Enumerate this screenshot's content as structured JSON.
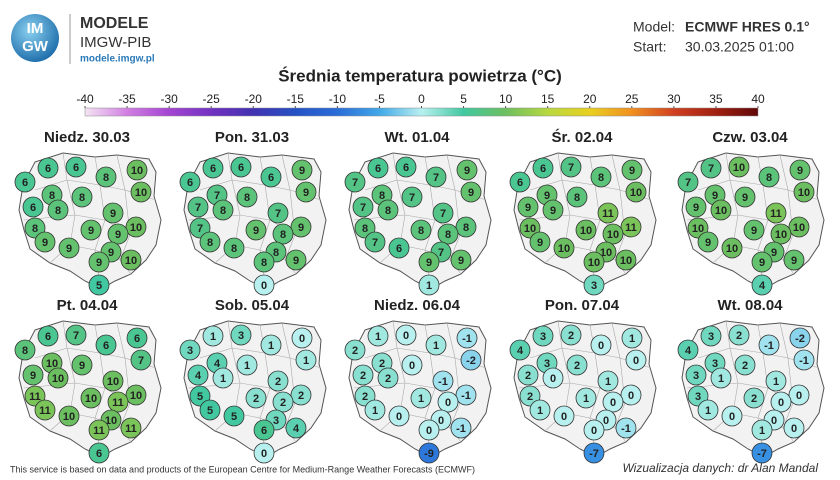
{
  "header": {
    "logo": [
      "IM",
      "GW"
    ],
    "brand": "MODELE",
    "org": "IMGW-PIB",
    "url": "modele.imgw.pl",
    "model_label": "Model:",
    "model": "ECMWF HRES 0.1°",
    "start_label": "Start:",
    "start": "30.03.2025 01:00"
  },
  "title": "Średnia temperatura powietrza (°C)",
  "colorbar": {
    "ticks": [
      -40,
      -35,
      -30,
      -25,
      -20,
      -15,
      -10,
      -5,
      0,
      5,
      10,
      15,
      20,
      25,
      30,
      35,
      40
    ],
    "colors": [
      "#f4e4f4",
      "#d27fe3",
      "#a444d2",
      "#7232c2",
      "#4232b2",
      "#2452c4",
      "#2a6cd8",
      "#42a8e8",
      "#b8f0f0",
      "#42c8a0",
      "#6cbf60",
      "#b8d840",
      "#e8d020",
      "#f09020",
      "#d04020",
      "#a02010",
      "#600808"
    ]
  },
  "maps": [
    {
      "label": "Niedz. 30.03",
      "values": [
        6,
        6,
        6,
        8,
        10,
        8,
        8,
        10,
        6,
        8,
        9,
        10,
        8,
        9,
        9,
        9,
        9,
        9,
        10,
        9,
        5
      ]
    },
    {
      "label": "Pon. 31.03",
      "values": [
        6,
        6,
        6,
        6,
        9,
        7,
        8,
        9,
        7,
        8,
        7,
        9,
        7,
        9,
        8,
        8,
        8,
        8,
        9,
        8,
        0
      ]
    },
    {
      "label": "Wt. 01.04",
      "values": [
        6,
        6,
        7,
        7,
        9,
        8,
        7,
        9,
        7,
        8,
        7,
        8,
        8,
        8,
        8,
        7,
        6,
        7,
        9,
        9,
        1
      ]
    },
    {
      "label": "Śr. 02.04",
      "values": [
        6,
        7,
        6,
        8,
        9,
        9,
        8,
        10,
        9,
        9,
        11,
        11,
        10,
        10,
        10,
        9,
        10,
        10,
        10,
        10,
        3
      ]
    },
    {
      "label": "Czw. 03.04",
      "values": [
        7,
        10,
        7,
        8,
        9,
        9,
        9,
        10,
        9,
        10,
        11,
        10,
        10,
        9,
        10,
        9,
        10,
        9,
        9,
        9,
        4
      ]
    },
    {
      "label": "Pt. 04.04",
      "values": [
        6,
        7,
        8,
        6,
        6,
        10,
        9,
        7,
        9,
        10,
        10,
        10,
        11,
        10,
        11,
        11,
        10,
        10,
        11,
        11,
        6
      ]
    },
    {
      "label": "Sob. 05.04",
      "values": [
        1,
        3,
        3,
        1,
        0,
        4,
        1,
        1,
        4,
        1,
        2,
        2,
        5,
        2,
        2,
        5,
        5,
        3,
        4,
        6,
        0
      ]
    },
    {
      "label": "Niedz. 06.04",
      "values": [
        1,
        0,
        2,
        1,
        -1,
        2,
        0,
        -2,
        2,
        2,
        -1,
        -1,
        2,
        1,
        0,
        1,
        0,
        0,
        -1,
        0,
        -9
      ]
    },
    {
      "label": "Pon. 07.04",
      "values": [
        3,
        2,
        4,
        0,
        1,
        3,
        2,
        0,
        2,
        0,
        1,
        0,
        2,
        1,
        0,
        1,
        0,
        0,
        -1,
        0,
        -7
      ]
    },
    {
      "label": "Wt. 08.04",
      "values": [
        3,
        2,
        4,
        -1,
        -2,
        3,
        2,
        -1,
        3,
        1,
        1,
        0,
        3,
        2,
        0,
        1,
        0,
        0,
        0,
        1,
        -7
      ]
    }
  ],
  "footer": {
    "source": "This service is based on data and products of the European Centre for Medium-Range Weather Forecasts (ECMWF)",
    "credit": "Wizualizacja danych: dr Alan Mandal"
  }
}
